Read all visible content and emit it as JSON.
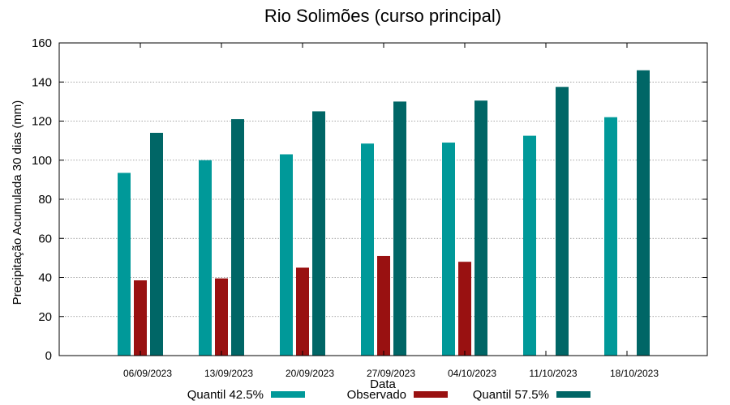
{
  "chart_data": {
    "type": "bar",
    "title": "Rio Solimões (curso principal)",
    "xlabel": "Data",
    "ylabel": "Precipitação Acumulada 30 dias (mm)",
    "ylim": [
      0,
      160
    ],
    "yticks": [
      0,
      20,
      40,
      60,
      80,
      100,
      120,
      140,
      160
    ],
    "grid": true,
    "legend_position": "bottom",
    "categories": [
      "06/09/2023",
      "13/09/2023",
      "20/09/2023",
      "27/09/2023",
      "04/10/2023",
      "11/10/2023",
      "18/10/2023"
    ],
    "series": [
      {
        "name": "Quantil 42.5%",
        "color": "#009999",
        "values": [
          93.5,
          100,
          103,
          108.5,
          109,
          112.5,
          122
        ]
      },
      {
        "name": "Observado",
        "color": "#991111",
        "values": [
          38.5,
          39.5,
          45,
          51,
          48,
          null,
          null
        ]
      },
      {
        "name": "Quantil 57.5%",
        "color": "#006666",
        "values": [
          114,
          121,
          125,
          130,
          130.5,
          137.5,
          146
        ]
      }
    ]
  }
}
